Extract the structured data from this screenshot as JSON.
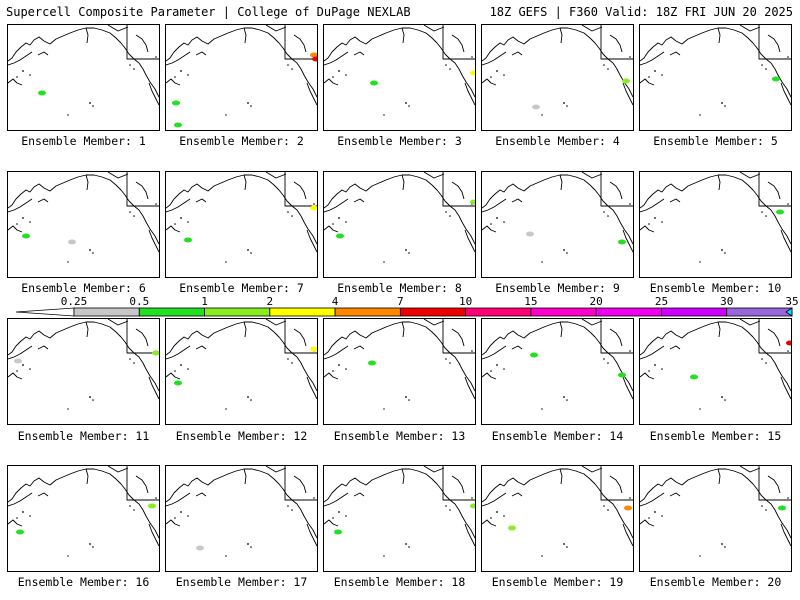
{
  "header": {
    "left": "Supercell Composite Parameter | College of DuPage NEXLAB",
    "right": "18Z GEFS | F360 Valid: 18Z FRI JUN 20 2025"
  },
  "members": [
    {
      "label": "Ensemble Member: 1"
    },
    {
      "label": "Ensemble Member: 2"
    },
    {
      "label": "Ensemble Member: 3"
    },
    {
      "label": "Ensemble Member: 4"
    },
    {
      "label": "Ensemble Member: 5"
    },
    {
      "label": "Ensemble Member: 6"
    },
    {
      "label": "Ensemble Member: 7"
    },
    {
      "label": "Ensemble Member: 8"
    },
    {
      "label": "Ensemble Member: 9"
    },
    {
      "label": "Ensemble Member: 10"
    },
    {
      "label": "Ensemble Member: 11"
    },
    {
      "label": "Ensemble Member: 12"
    },
    {
      "label": "Ensemble Member: 13"
    },
    {
      "label": "Ensemble Member: 14"
    },
    {
      "label": "Ensemble Member: 15"
    },
    {
      "label": "Ensemble Member: 16"
    },
    {
      "label": "Ensemble Member: 17"
    },
    {
      "label": "Ensemble Member: 18"
    },
    {
      "label": "Ensemble Member: 19"
    },
    {
      "label": "Ensemble Member: 20"
    }
  ],
  "colorbar": {
    "labels": [
      "0.25",
      "0.5",
      "1",
      "2",
      "4",
      "7",
      "10",
      "15",
      "20",
      "25",
      "30",
      "35"
    ],
    "colors": [
      "#c8c8c8",
      "#22e022",
      "#88ee22",
      "#ffff00",
      "#ff8800",
      "#ee0000",
      "#ff0077",
      "#ff00cc",
      "#ee00ee",
      "#cc00ff",
      "#9966dd",
      "#00e0ff"
    ]
  }
}
